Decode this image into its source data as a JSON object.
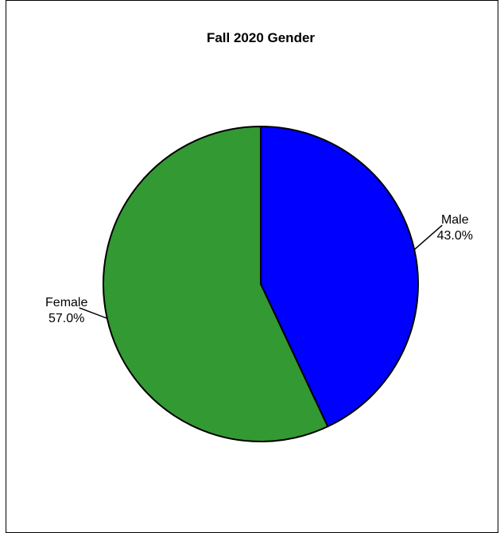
{
  "chart_data": {
    "type": "pie",
    "title": "Fall 2020 Gender",
    "start_angle_deg": 0,
    "direction": "clockwise",
    "slices": [
      {
        "label": "Male",
        "value": 43.0,
        "value_label": "43.0%",
        "color": "#0000FF"
      },
      {
        "label": "Female",
        "value": 57.0,
        "value_label": "57.0%",
        "color": "#339933"
      }
    ],
    "label_placement": "outside-with-leader-lines"
  }
}
